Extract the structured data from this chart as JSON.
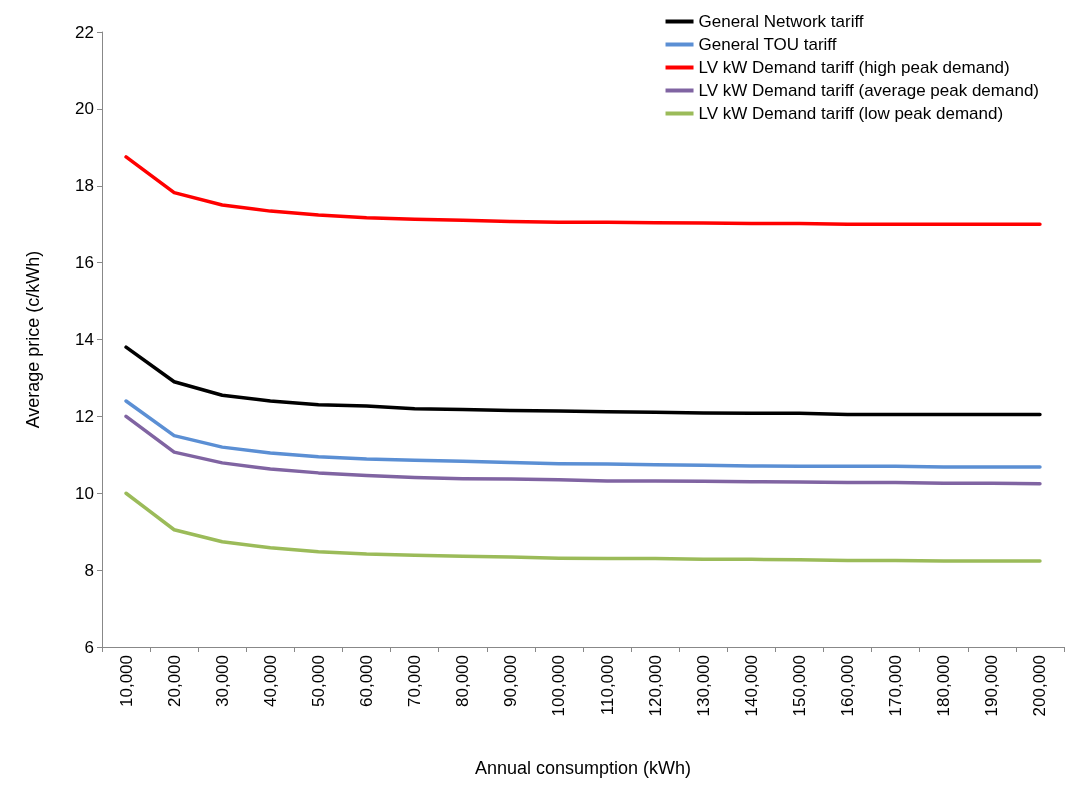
{
  "chart_data": {
    "type": "line",
    "xlabel": "Annual consumption (kWh)",
    "ylabel": "Average price (c/kWh)",
    "categories": [
      "10,000",
      "20,000",
      "30,000",
      "40,000",
      "50,000",
      "60,000",
      "70,000",
      "80,000",
      "90,000",
      "100,000",
      "110,000",
      "120,000",
      "130,000",
      "140,000",
      "150,000",
      "160,000",
      "170,000",
      "180,000",
      "190,000",
      "200,000"
    ],
    "series": [
      {
        "name": "General Network tariff",
        "color": "#000000",
        "values": [
          13.8,
          12.9,
          12.55,
          12.4,
          12.3,
          12.27,
          12.2,
          12.18,
          12.15,
          12.14,
          12.12,
          12.11,
          12.09,
          12.08,
          12.08,
          12.05,
          12.05,
          12.05,
          12.05,
          12.05
        ]
      },
      {
        "name": "General TOU tariff",
        "color": "#5b8fd4",
        "values": [
          12.4,
          11.5,
          11.2,
          11.05,
          10.95,
          10.89,
          10.86,
          10.83,
          10.8,
          10.77,
          10.76,
          10.74,
          10.73,
          10.71,
          10.7,
          10.7,
          10.7,
          10.68,
          10.68,
          10.68
        ]
      },
      {
        "name": "LV kW Demand tariff (high peak demand)",
        "color": "#ff0000",
        "values": [
          18.75,
          17.82,
          17.5,
          17.34,
          17.24,
          17.17,
          17.13,
          17.1,
          17.07,
          17.05,
          17.05,
          17.04,
          17.03,
          17.02,
          17.02,
          17.0,
          17.0,
          17.0,
          17.0,
          17.0
        ]
      },
      {
        "name": "LV kW Demand tariff (average peak demand)",
        "color": "#8064a2",
        "values": [
          12.0,
          11.07,
          10.79,
          10.63,
          10.53,
          10.46,
          10.41,
          10.38,
          10.37,
          10.35,
          10.32,
          10.32,
          10.31,
          10.3,
          10.29,
          10.28,
          10.28,
          10.26,
          10.26,
          10.25
        ]
      },
      {
        "name": "LV kW Demand tariff (low peak demand)",
        "color": "#9bbb59",
        "values": [
          10.0,
          9.05,
          8.74,
          8.58,
          8.48,
          8.42,
          8.39,
          8.36,
          8.34,
          8.31,
          8.3,
          8.3,
          8.28,
          8.28,
          8.27,
          8.25,
          8.25,
          8.24,
          8.24,
          8.24
        ]
      }
    ],
    "ylim": [
      6,
      22
    ],
    "yticks": [
      6,
      8,
      10,
      12,
      14,
      16,
      18,
      20,
      22
    ],
    "grid": false,
    "legend": "top right",
    "marker": "none",
    "line_style": "solid"
  }
}
